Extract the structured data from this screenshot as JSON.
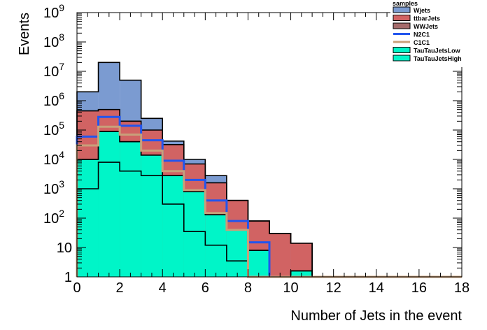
{
  "chart_data": {
    "type": "bar",
    "stacked": true,
    "style": "step-histogram",
    "xlabel": "Number of Jets in the event",
    "ylabel": "Events",
    "xlim": [
      0,
      18
    ],
    "ylim": [
      1,
      1000000000
    ],
    "ylog": true,
    "bin_edges": [
      0,
      1,
      2,
      3,
      4,
      5,
      6,
      7,
      8,
      9,
      10,
      11,
      12,
      13,
      14,
      15,
      16,
      17,
      18
    ],
    "x_ticks": [
      0,
      2,
      4,
      6,
      8,
      10,
      12,
      14,
      16,
      18
    ],
    "y_ticks": [
      {
        "value": 1,
        "label": "1"
      },
      {
        "value": 10,
        "label": "10"
      },
      {
        "value": 100,
        "label": "10^2"
      },
      {
        "value": 1000,
        "label": "10^3"
      },
      {
        "value": 10000,
        "label": "10^4"
      },
      {
        "value": 100000,
        "label": "10^5"
      },
      {
        "value": 1000000,
        "label": "10^6"
      },
      {
        "value": 10000000,
        "label": "10^7"
      },
      {
        "value": 100000000,
        "label": "10^8"
      },
      {
        "value": 1000000000,
        "label": "10^9"
      }
    ],
    "legend": {
      "title": "samples",
      "placement": "top-right",
      "entries": [
        {
          "label": "Wjets",
          "kind": "fill",
          "color": "#7b9bd1"
        },
        {
          "label": "ttbarJets",
          "kind": "fill",
          "color": "#d16363"
        },
        {
          "label": "WWJets",
          "kind": "fill",
          "color": "#a56b6b"
        },
        {
          "label": "N2C1",
          "kind": "line",
          "color": "#2255ee"
        },
        {
          "label": "C1C1",
          "kind": "line",
          "color": "#c8a07a"
        },
        {
          "label": "TauTauJetsLow",
          "kind": "fill",
          "color": "#00f5c8"
        },
        {
          "label": "TauTauJetsHigh",
          "kind": "fill",
          "color": "#00f5c8"
        }
      ]
    },
    "stack_layers": [
      {
        "name": "TauTauJetsHigh",
        "color": "#00f5c8",
        "cumulative": [
          1000,
          8000,
          4000,
          2800,
          300,
          35,
          12,
          3.5,
          1,
          1,
          1,
          1,
          1,
          1,
          1,
          1,
          1,
          1
        ]
      },
      {
        "name": "TauTauJetsLow",
        "color": "#00f5c8",
        "cumulative": [
          10000,
          90000,
          40000,
          14000,
          2800,
          800,
          130,
          40,
          8,
          1,
          1.6,
          1,
          1,
          1,
          1,
          1,
          1,
          1
        ]
      },
      {
        "name": "WWJets",
        "color": "#a56b6b",
        "cumulative": [
          10000,
          90000,
          40000,
          14000,
          2800,
          800,
          130,
          40,
          8,
          1,
          1.6,
          1,
          1,
          1,
          1,
          1,
          1,
          1
        ]
      },
      {
        "name": "ttbarJets",
        "color": "#d16363",
        "cumulative": [
          450000,
          500000,
          200000,
          100000,
          32000,
          7000,
          1600,
          400,
          80,
          30,
          14,
          1,
          1,
          1,
          1,
          1,
          1,
          1
        ]
      },
      {
        "name": "Wjets",
        "color": "#7b9bd1",
        "cumulative": [
          2000000,
          20000000,
          5000000,
          250000,
          42000,
          10000,
          2800,
          400,
          80,
          30,
          14,
          1,
          1,
          1,
          1,
          1,
          1,
          1
        ]
      }
    ],
    "line_series": [
      {
        "name": "N2C1",
        "color": "#2255ee",
        "values": [
          60000,
          280000,
          140000,
          45000,
          9000,
          2000,
          400,
          80,
          15,
          1,
          1,
          1,
          1,
          1,
          1,
          1,
          1,
          1
        ]
      },
      {
        "name": "C1C1",
        "color": "#c8a07a",
        "values": [
          30000,
          130000,
          70000,
          20000,
          4000,
          900,
          150,
          40,
          1,
          1,
          1,
          1,
          1,
          1,
          1,
          1,
          1,
          1
        ]
      }
    ]
  }
}
